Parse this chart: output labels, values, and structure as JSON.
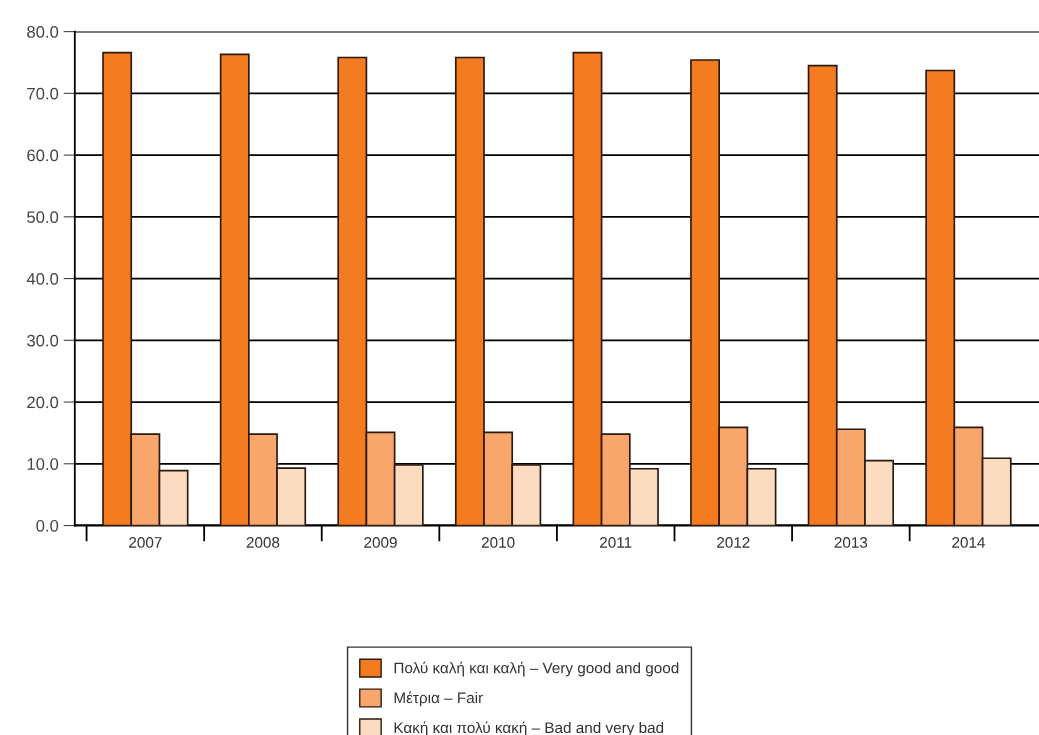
{
  "chart_data": {
    "type": "bar",
    "categories": [
      "2007",
      "2008",
      "2009",
      "2010",
      "2011",
      "2012",
      "2013",
      "2014"
    ],
    "series": [
      {
        "name": "Πολύ καλή και καλή – Very good and good",
        "color": "#f47b20",
        "values": [
          76.6,
          76.3,
          75.8,
          75.8,
          76.6,
          75.4,
          74.5,
          73.7
        ]
      },
      {
        "name": "Μέτρια – Fair",
        "color": "#f9a66c",
        "values": [
          14.8,
          14.8,
          15.1,
          15.1,
          14.8,
          15.9,
          15.6,
          15.9
        ]
      },
      {
        "name": "Κακή και πολύ κακή – Bad and very bad",
        "color": "#fcdcc0",
        "values": [
          8.9,
          9.3,
          9.8,
          9.8,
          9.2,
          9.2,
          10.5,
          10.9
        ]
      }
    ],
    "ylim": [
      0,
      80
    ],
    "yticks": [
      {
        "value": 0,
        "label": "0.0"
      },
      {
        "value": 10,
        "label": "10.0"
      },
      {
        "value": 20,
        "label": "20.0"
      },
      {
        "value": 30,
        "label": "30.0"
      },
      {
        "value": 40,
        "label": "40.0"
      },
      {
        "value": 50,
        "label": "50.0"
      },
      {
        "value": 60,
        "label": "60.0"
      },
      {
        "value": 70,
        "label": "70.0"
      },
      {
        "value": 80,
        "label": "80.0"
      }
    ],
    "grid": "y",
    "legend": "bottom"
  }
}
